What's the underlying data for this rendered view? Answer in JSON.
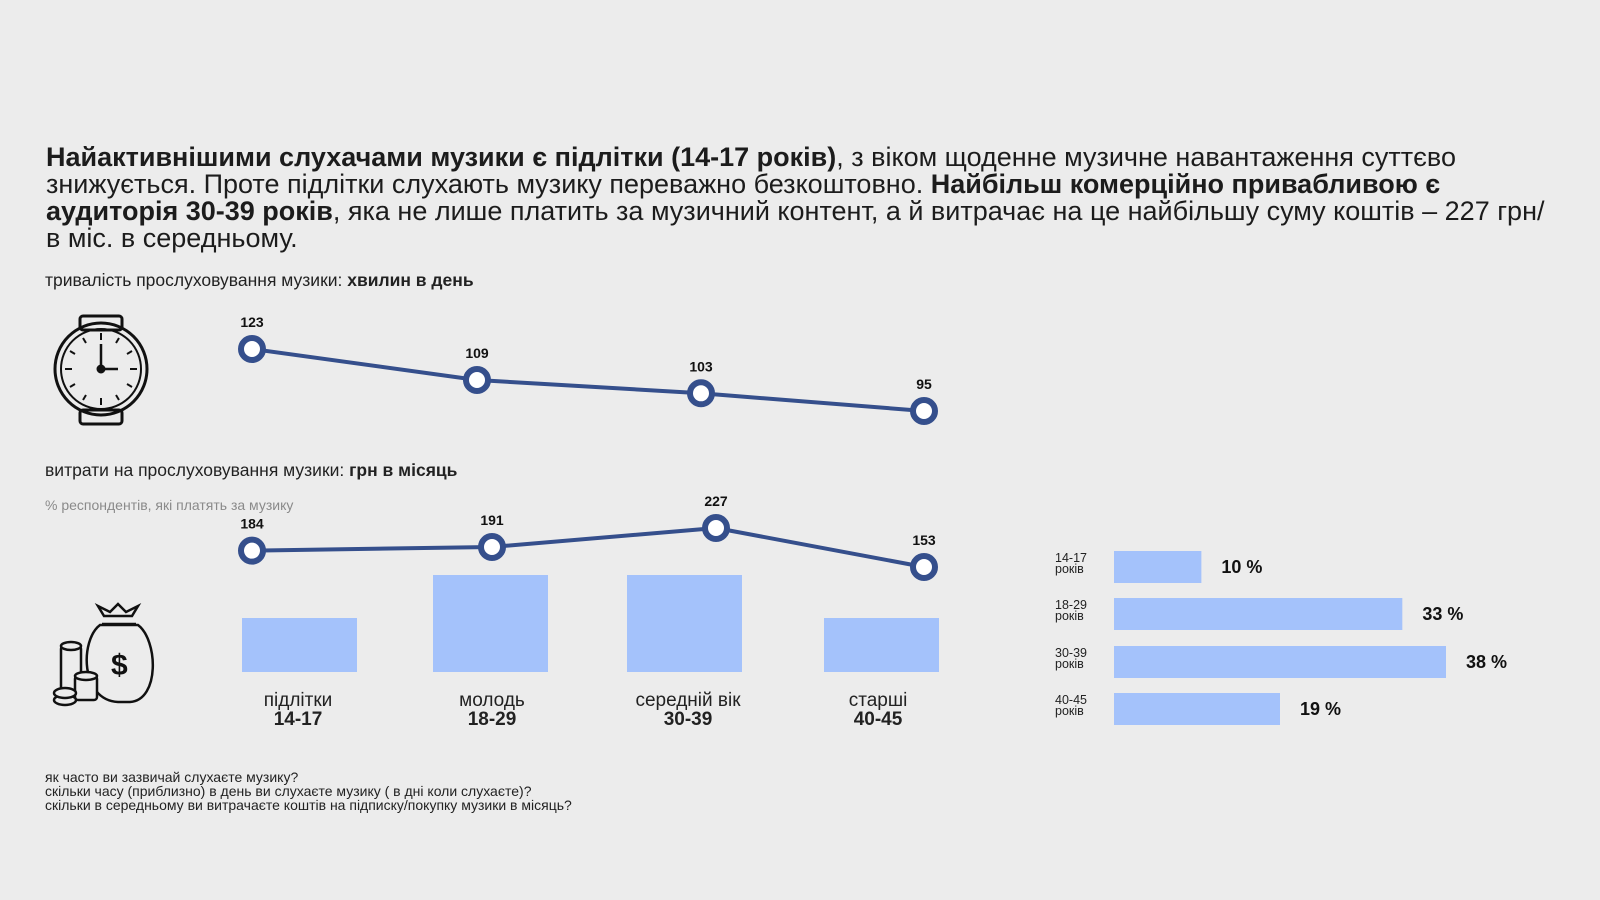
{
  "headline": {
    "bold1": "Найактивнішими слухачами музики є підлітки (14-17 років)",
    "normal1": ", з віком щоденне музичне навантаження суттєво знижується. Проте підлітки слухають музику переважно безкоштовно. ",
    "bold2": "Найбільш комерційно привабливою є аудиторія 30-39 років",
    "normal2": ", яка не лише платить за музичний контент, а й витрачає на це найбільшу суму коштів – 227 грн/в міс. в середньому."
  },
  "listening": {
    "label_normal": "тривалість прослуховування музики: ",
    "label_bold": "хвилин в день"
  },
  "spending": {
    "label_normal": "витрати на прослуховування музики: ",
    "label_bold": "грн в місяць",
    "note": "% респондентів, які платять за музику"
  },
  "footnotes": [
    "як часто ви зазвичай слухаєте музику?",
    "скільки часу (приблизно) в день ви слухаєте музику ( в дні коли слухаєте)?",
    "скільки в середньому ви витрачаєте коштів на підписку/покупку музики в місяць?"
  ],
  "icons": {
    "watch": "wristwatch-icon",
    "money": "money-bag-coins-icon"
  },
  "colors": {
    "line": "#354f8c",
    "bar": "#a4c2fb",
    "background": "#ececec"
  },
  "chart_data": [
    {
      "type": "line",
      "categories": [
        "підлітки 14-17",
        "молодь 18-29",
        "середній вік 30-39",
        "старші 40-45"
      ],
      "values": [
        123,
        109,
        103,
        95
      ],
      "data_labels": [
        "123",
        "109",
        "103",
        "95"
      ]
    },
    {
      "type": "line",
      "categories": [
        "підлітки 14-17",
        "молодь 18-29",
        "середній вік 30-39",
        "старші 40-45"
      ],
      "values": [
        184,
        191,
        227,
        153
      ],
      "data_labels": [
        "184",
        "191",
        "227",
        "153"
      ],
      "category_labels": [
        {
          "line1": "підлітки",
          "line2": "14-17"
        },
        {
          "line1": "молодь",
          "line2": "18-29"
        },
        {
          "line1": "середній вік",
          "line2": "30-39"
        },
        {
          "line1": "старші",
          "line2": "40-45"
        }
      ]
    },
    {
      "type": "bar",
      "categories": [
        "підлітки 14-17",
        "молодь 18-29",
        "середній вік 30-39",
        "старші 40-45"
      ],
      "values": [
        1,
        2,
        2,
        1
      ]
    },
    {
      "type": "bar",
      "orientation": "horizontal",
      "categories": [
        {
          "line1": "14-17",
          "line2": "років"
        },
        {
          "line1": "18-29",
          "line2": "років"
        },
        {
          "line1": "30-39",
          "line2": "років"
        },
        {
          "line1": "40-45",
          "line2": "років"
        }
      ],
      "values": [
        10,
        33,
        38,
        19
      ],
      "value_labels": [
        "10 %",
        "33 %",
        "38 %",
        "19  %"
      ]
    }
  ]
}
